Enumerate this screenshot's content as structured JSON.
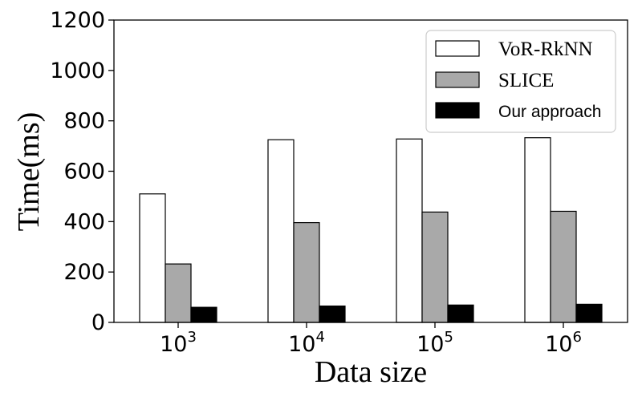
{
  "chart_data": {
    "type": "bar",
    "xlabel": "Data size",
    "ylabel": "Time(ms)",
    "ylim": [
      0,
      1200
    ],
    "yticks": [
      "0",
      "200",
      "400",
      "600",
      "800",
      "1000",
      "1200"
    ],
    "categories": [
      {
        "base": "10",
        "exp": "3"
      },
      {
        "base": "10",
        "exp": "4"
      },
      {
        "base": "10",
        "exp": "5"
      },
      {
        "base": "10",
        "exp": "6"
      }
    ],
    "series": [
      {
        "name": "VoR-RkNN",
        "values": [
          510,
          725,
          728,
          733
        ],
        "color": "#ffffff"
      },
      {
        "name": "SLICE",
        "values": [
          232,
          396,
          438,
          441
        ],
        "color": "#a9a9a9"
      },
      {
        "name": "Our approach",
        "values": [
          60,
          65,
          69,
          72
        ],
        "color": "#000000"
      }
    ],
    "legend_position": "top-right",
    "grid": false
  }
}
